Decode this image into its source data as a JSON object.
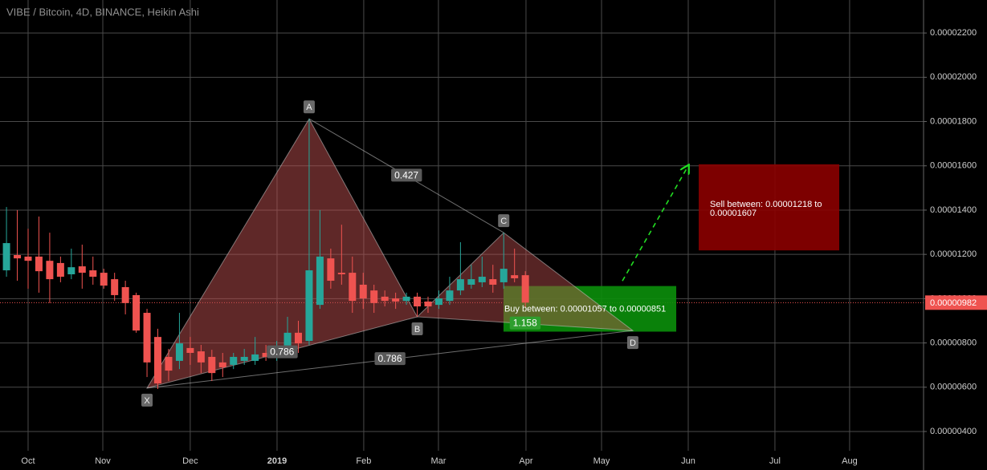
{
  "chart_data": {
    "type": "candlestick",
    "title": "VIBE / Bitcoin, 4D, BINANCE, Heikin Ashi",
    "up_color": "#26a69a",
    "down_color": "#ef5350",
    "grid": true,
    "xlim": [
      -2.6,
      82.84
    ],
    "ylim": [
      3.13e-06,
      2.349e-05
    ],
    "xticks": [
      {
        "value": 0,
        "label": "Oct"
      },
      {
        "value": 6.91,
        "label": "Nov"
      },
      {
        "value": 15.0,
        "label": "Dec"
      },
      {
        "value": 23.03,
        "label": "2019"
      },
      {
        "value": 31.05,
        "label": "Feb"
      },
      {
        "value": 37.96,
        "label": "Mar"
      },
      {
        "value": 46.06,
        "label": "Apr"
      },
      {
        "value": 53.05,
        "label": "May"
      },
      {
        "value": 61.07,
        "label": "Jun"
      },
      {
        "value": 69.09,
        "label": "Jul"
      },
      {
        "value": 76.0,
        "label": "Aug"
      }
    ],
    "yticks": [
      {
        "value": 4e-06,
        "label": "0.00000400"
      },
      {
        "value": 6e-06,
        "label": "0.00000600"
      },
      {
        "value": 8e-06,
        "label": "0.00000800"
      },
      {
        "value": 1e-05,
        "label": "0.00001000"
      },
      {
        "value": 1.2e-05,
        "label": "0.00001200"
      },
      {
        "value": 1.4e-05,
        "label": "0.00001400"
      },
      {
        "value": 1.6e-05,
        "label": "0.00001600"
      },
      {
        "value": 1.8e-05,
        "label": "0.00001800"
      },
      {
        "value": 2e-05,
        "label": "0.00002000"
      },
      {
        "value": 2.2e-05,
        "label": "0.00002200"
      }
    ],
    "x": [
      -2,
      -1,
      0,
      1,
      2,
      3,
      4,
      5,
      6,
      7,
      8,
      9,
      10,
      11,
      12,
      13,
      14,
      15,
      16,
      17,
      18,
      19,
      20,
      21,
      22,
      23,
      24,
      25,
      26,
      27,
      28,
      29,
      30,
      31,
      32,
      33,
      34,
      35,
      36,
      37,
      38,
      39,
      40,
      41,
      42,
      43,
      44,
      45,
      46
    ],
    "open": [
      1.128e-05,
      1.197e-05,
      1.19e-05,
      1.19e-05,
      1.171e-05,
      1.161e-05,
      1.11e-05,
      1.146e-05,
      1.128e-05,
      1.117e-05,
      1.088e-05,
      1.052e-05,
      1.016e-05,
      9.36e-06,
      8.27e-06,
      7.37e-06,
      7.19e-06,
      7.77e-06,
      7.62e-06,
      7.37e-06,
      7.12e-06,
      7.01e-06,
      7.19e-06,
      7.19e-06,
      7.55e-06,
      7.44e-06,
      7.55e-06,
      8.46e-06,
      8.09e-06,
      9.72e-06,
      1.182e-05,
      1.117e-05,
      1.117e-05,
      1.063e-05,
      1.037e-05,
      1.009e-05,
      1.001e-05,
      9.9e-06,
      1.009e-05,
      9.87e-06,
      9.72e-06,
      9.9e-06,
      1.037e-05,
      1.063e-05,
      1.074e-05,
      1.088e-05,
      1.074e-05,
      1.106e-05,
      1.106e-05
    ],
    "high": [
      1.414e-05,
      1.4e-05,
      1.316e-05,
      1.371e-05,
      1.298e-05,
      1.19e-05,
      1.226e-05,
      1.244e-05,
      1.19e-05,
      1.135e-05,
      1.117e-05,
      1.081e-05,
      1.027e-05,
      9.54e-06,
      8.64e-06,
      7.73e-06,
      9.36e-06,
      8.27e-06,
      7.91e-06,
      7.69e-06,
      7.55e-06,
      7.55e-06,
      7.73e-06,
      8.27e-06,
      7.91e-06,
      8.09e-06,
      9.18e-06,
      9e-06,
      1.812e-05,
      1.4e-05,
      1.226e-05,
      1.334e-05,
      1.19e-05,
      1.117e-05,
      1.063e-05,
      1.037e-05,
      1.027e-05,
      1.027e-05,
      1.027e-05,
      1.009e-05,
      1.037e-05,
      1.099e-05,
      1.255e-05,
      1.153e-05,
      1.19e-05,
      1.153e-05,
      1.298e-05,
      1.226e-05,
      1.124e-05
    ],
    "low": [
      1.099e-05,
      1.081e-05,
      1.045e-05,
      1.027e-05,
      9.8e-06,
      1.074e-05,
      1.088e-05,
      1.045e-05,
      1.063e-05,
      1.045e-05,
      9.9e-06,
      9.29e-06,
      8.46e-06,
      6.46e-06,
      5.92e-06,
      6.28e-06,
      6.82e-06,
      7.01e-06,
      6.64e-06,
      6.28e-06,
      6.46e-06,
      6.82e-06,
      7.01e-06,
      7.01e-06,
      7.19e-06,
      7.19e-06,
      7.37e-06,
      7.55e-06,
      7.91e-06,
      9.54e-06,
      1.045e-05,
      1.063e-05,
      9.36e-06,
      9.54e-06,
      9.36e-06,
      9.65e-06,
      9.54e-06,
      9.72e-06,
      9.18e-06,
      9.36e-06,
      9.54e-06,
      9.72e-06,
      1.016e-05,
      1.045e-05,
      1.052e-05,
      1.027e-05,
      1.045e-05,
      1.074e-05,
      9.6e-06
    ],
    "close": [
      1.251e-05,
      1.182e-05,
      1.171e-05,
      1.124e-05,
      1.088e-05,
      1.099e-05,
      1.142e-05,
      1.117e-05,
      1.099e-05,
      1.059e-05,
      1.016e-05,
      9.8e-06,
      8.56e-06,
      7.12e-06,
      6.17e-06,
      6.75e-06,
      7.98e-06,
      7.55e-06,
      7.12e-06,
      6.64e-06,
      6.9e-06,
      7.37e-06,
      7.37e-06,
      7.48e-06,
      7.37e-06,
      7.62e-06,
      8.46e-06,
      7.98e-06,
      1.128e-05,
      1.19e-05,
      1.081e-05,
      1.11e-05,
      9.9e-06,
      1.001e-05,
      9.8e-06,
      9.9e-06,
      9.87e-06,
      1.009e-05,
      9.65e-06,
      9.65e-06,
      1.001e-05,
      1.037e-05,
      1.088e-05,
      1.088e-05,
      1.099e-05,
      1.063e-05,
      1.135e-05,
      1.092e-05,
      9.82e-06
    ],
    "last_price": {
      "value": 9.82e-06,
      "label": "0.00000982",
      "color": "#ef5350"
    },
    "pattern": {
      "points": [
        {
          "label": "X",
          "x": 11,
          "value": 5.96e-06
        },
        {
          "label": "A",
          "x": 26,
          "value": 1.812e-05
        },
        {
          "label": "B",
          "x": 36,
          "value": 9.18e-06
        },
        {
          "label": "C",
          "x": 44,
          "value": 1.298e-05
        },
        {
          "label": "D",
          "x": 55.94,
          "value": 8.56e-06
        }
      ],
      "ratios": [
        0.427,
        0.786,
        0.786,
        1.158
      ]
    },
    "buy_zone": {
      "label": "Buy between: 0.00001057 to 0.00000851",
      "top": 1.057e-05,
      "bottom": 8.51e-06,
      "x": [
        43.98,
        59.96
      ],
      "color": "#0b8f0b"
    },
    "sell_zone": {
      "label": "Sell between: 0.00001218 to 0.00001607",
      "top": 1.607e-05,
      "bottom": 1.218e-05,
      "x": [
        62.04,
        75.04
      ],
      "color": "#8b0000"
    },
    "projection": {
      "x": [
        54.98,
        61.07
      ],
      "values": [
        1.08e-05,
        1.6e-05
      ],
      "color": "#22dd22"
    }
  }
}
